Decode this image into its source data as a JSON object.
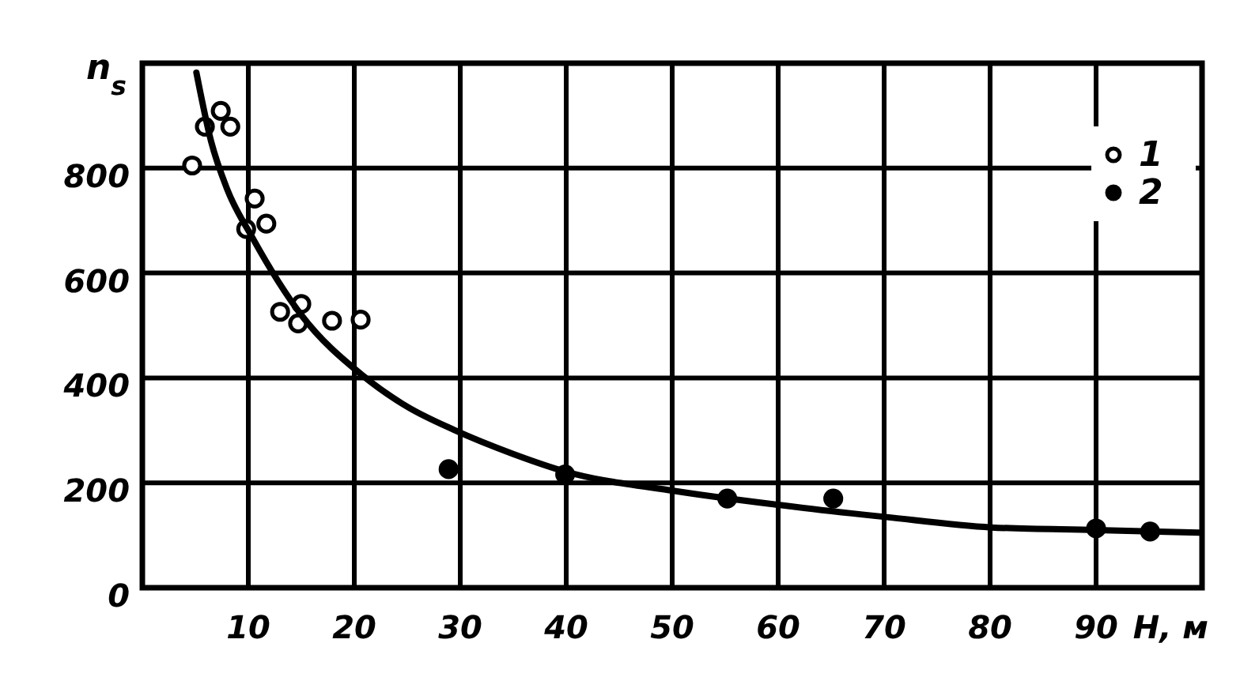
{
  "chart_data": {
    "type": "scatter",
    "xlabel": "H, м",
    "ylabel": "n$_{s}$",
    "xlim": [
      0,
      100
    ],
    "ylim": [
      0,
      1000
    ],
    "xticks": [
      {
        "value": 0,
        "label": null
      },
      10,
      20,
      30,
      40,
      50,
      60,
      70,
      80,
      90,
      {
        "value": 100,
        "label": null
      }
    ],
    "yticks": [
      0,
      200,
      400,
      600,
      800,
      {
        "value": 1000,
        "label": null
      }
    ],
    "grid": true,
    "legend": "top right",
    "series": [
      {
        "name": "1",
        "color": "#ffffff",
        "marker": "circle",
        "x": [
          4.7,
          5.9,
          7.4,
          8.3,
          10.6,
          9.8,
          11.7,
          13.0,
          15.0,
          14.7,
          17.9,
          20.6
        ],
        "values": [
          805,
          879,
          909,
          879,
          742,
          684,
          694,
          526,
          541,
          504,
          509,
          511
        ]
      },
      {
        "name": "2",
        "color": "#000000",
        "marker": "circle",
        "x": [
          28.9,
          39.9,
          55.2,
          65.2,
          90.0,
          95.1
        ],
        "values": [
          226,
          216,
          170,
          170,
          113,
          107
        ]
      },
      {
        "type": "line",
        "color": "#000000",
        "marker": "none",
        "x": [
          5.1,
          6.5,
          8,
          10.4,
          15,
          20.7,
          25,
          29.4,
          35,
          40,
          49.7,
          60,
          70.1,
          80.1,
          90,
          99.7
        ],
        "values": [
          982,
          850,
          760,
          667,
          520,
          406,
          345,
          301,
          255,
          221,
          186,
          158,
          135,
          115,
          110,
          105
        ]
      }
    ]
  }
}
